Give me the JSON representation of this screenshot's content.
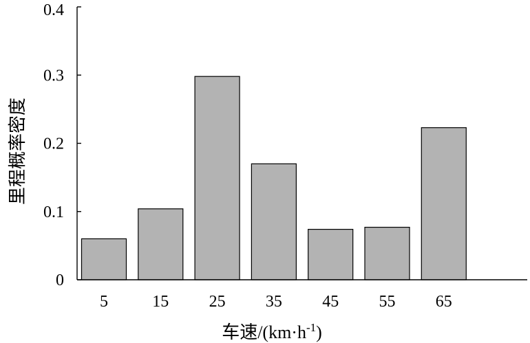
{
  "chart_data": {
    "type": "bar",
    "categories": [
      "5",
      "15",
      "25",
      "35",
      "45",
      "55",
      "65"
    ],
    "values": [
      0.06,
      0.104,
      0.298,
      0.17,
      0.074,
      0.077,
      0.223
    ],
    "ylim": [
      0,
      0.4
    ],
    "yticks": [
      "0",
      "0.1",
      "0.2",
      "0.3",
      "0.4"
    ],
    "xlabel_main": "车速/(km·h",
    "xlabel_sup": "-1",
    "xlabel_end": ")",
    "ylabel": "里程概率密度",
    "grid": false,
    "bar_color": "#b3b3b3",
    "edge_color": "#000000"
  }
}
